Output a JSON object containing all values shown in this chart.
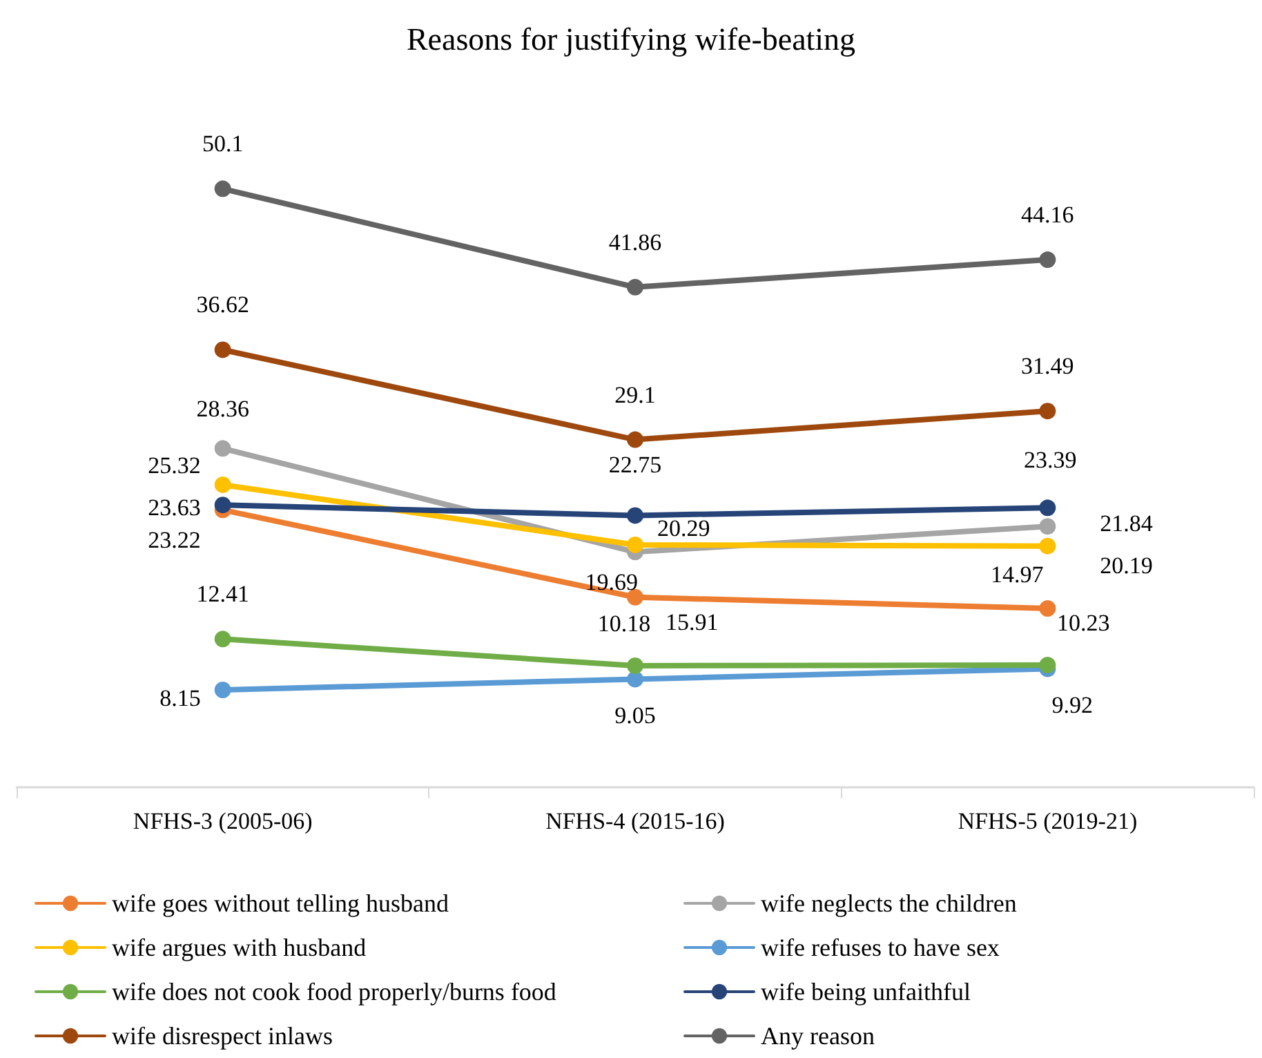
{
  "chart_data": {
    "type": "line",
    "title": "Reasons for justifying wife-beating",
    "categories": [
      "NFHS-3 (2005-06)",
      "NFHS-4 (2015-16)",
      "NFHS-5 (2019-21)"
    ],
    "series": [
      {
        "name": "wife goes without telling husband",
        "color": "#ed7d31",
        "values": [
          23.22,
          15.91,
          14.97
        ]
      },
      {
        "name": "wife neglects the children",
        "color": "#a5a5a5",
        "values": [
          28.36,
          19.69,
          21.84
        ]
      },
      {
        "name": "wife argues with husband",
        "color": "#ffc000",
        "values": [
          25.32,
          20.29,
          20.19
        ]
      },
      {
        "name": "wife refuses to have sex",
        "color": "#5b9bd5",
        "values": [
          8.15,
          9.05,
          9.92
        ]
      },
      {
        "name": "wife does not cook food properly/burns food",
        "color": "#70ad47",
        "values": [
          12.41,
          10.18,
          10.23
        ]
      },
      {
        "name": "wife being unfaithful",
        "color": "#264478",
        "values": [
          23.63,
          22.75,
          23.39
        ]
      },
      {
        "name": "wife disrespect inlaws",
        "color": "#9e480e",
        "values": [
          36.62,
          29.1,
          31.49
        ]
      },
      {
        "name": "Any reason",
        "color": "#636363",
        "values": [
          50.1,
          41.86,
          44.16
        ]
      }
    ],
    "data_labels": true,
    "legend": "bottom",
    "marker": "circle",
    "line_style": "solid",
    "grid": false
  }
}
